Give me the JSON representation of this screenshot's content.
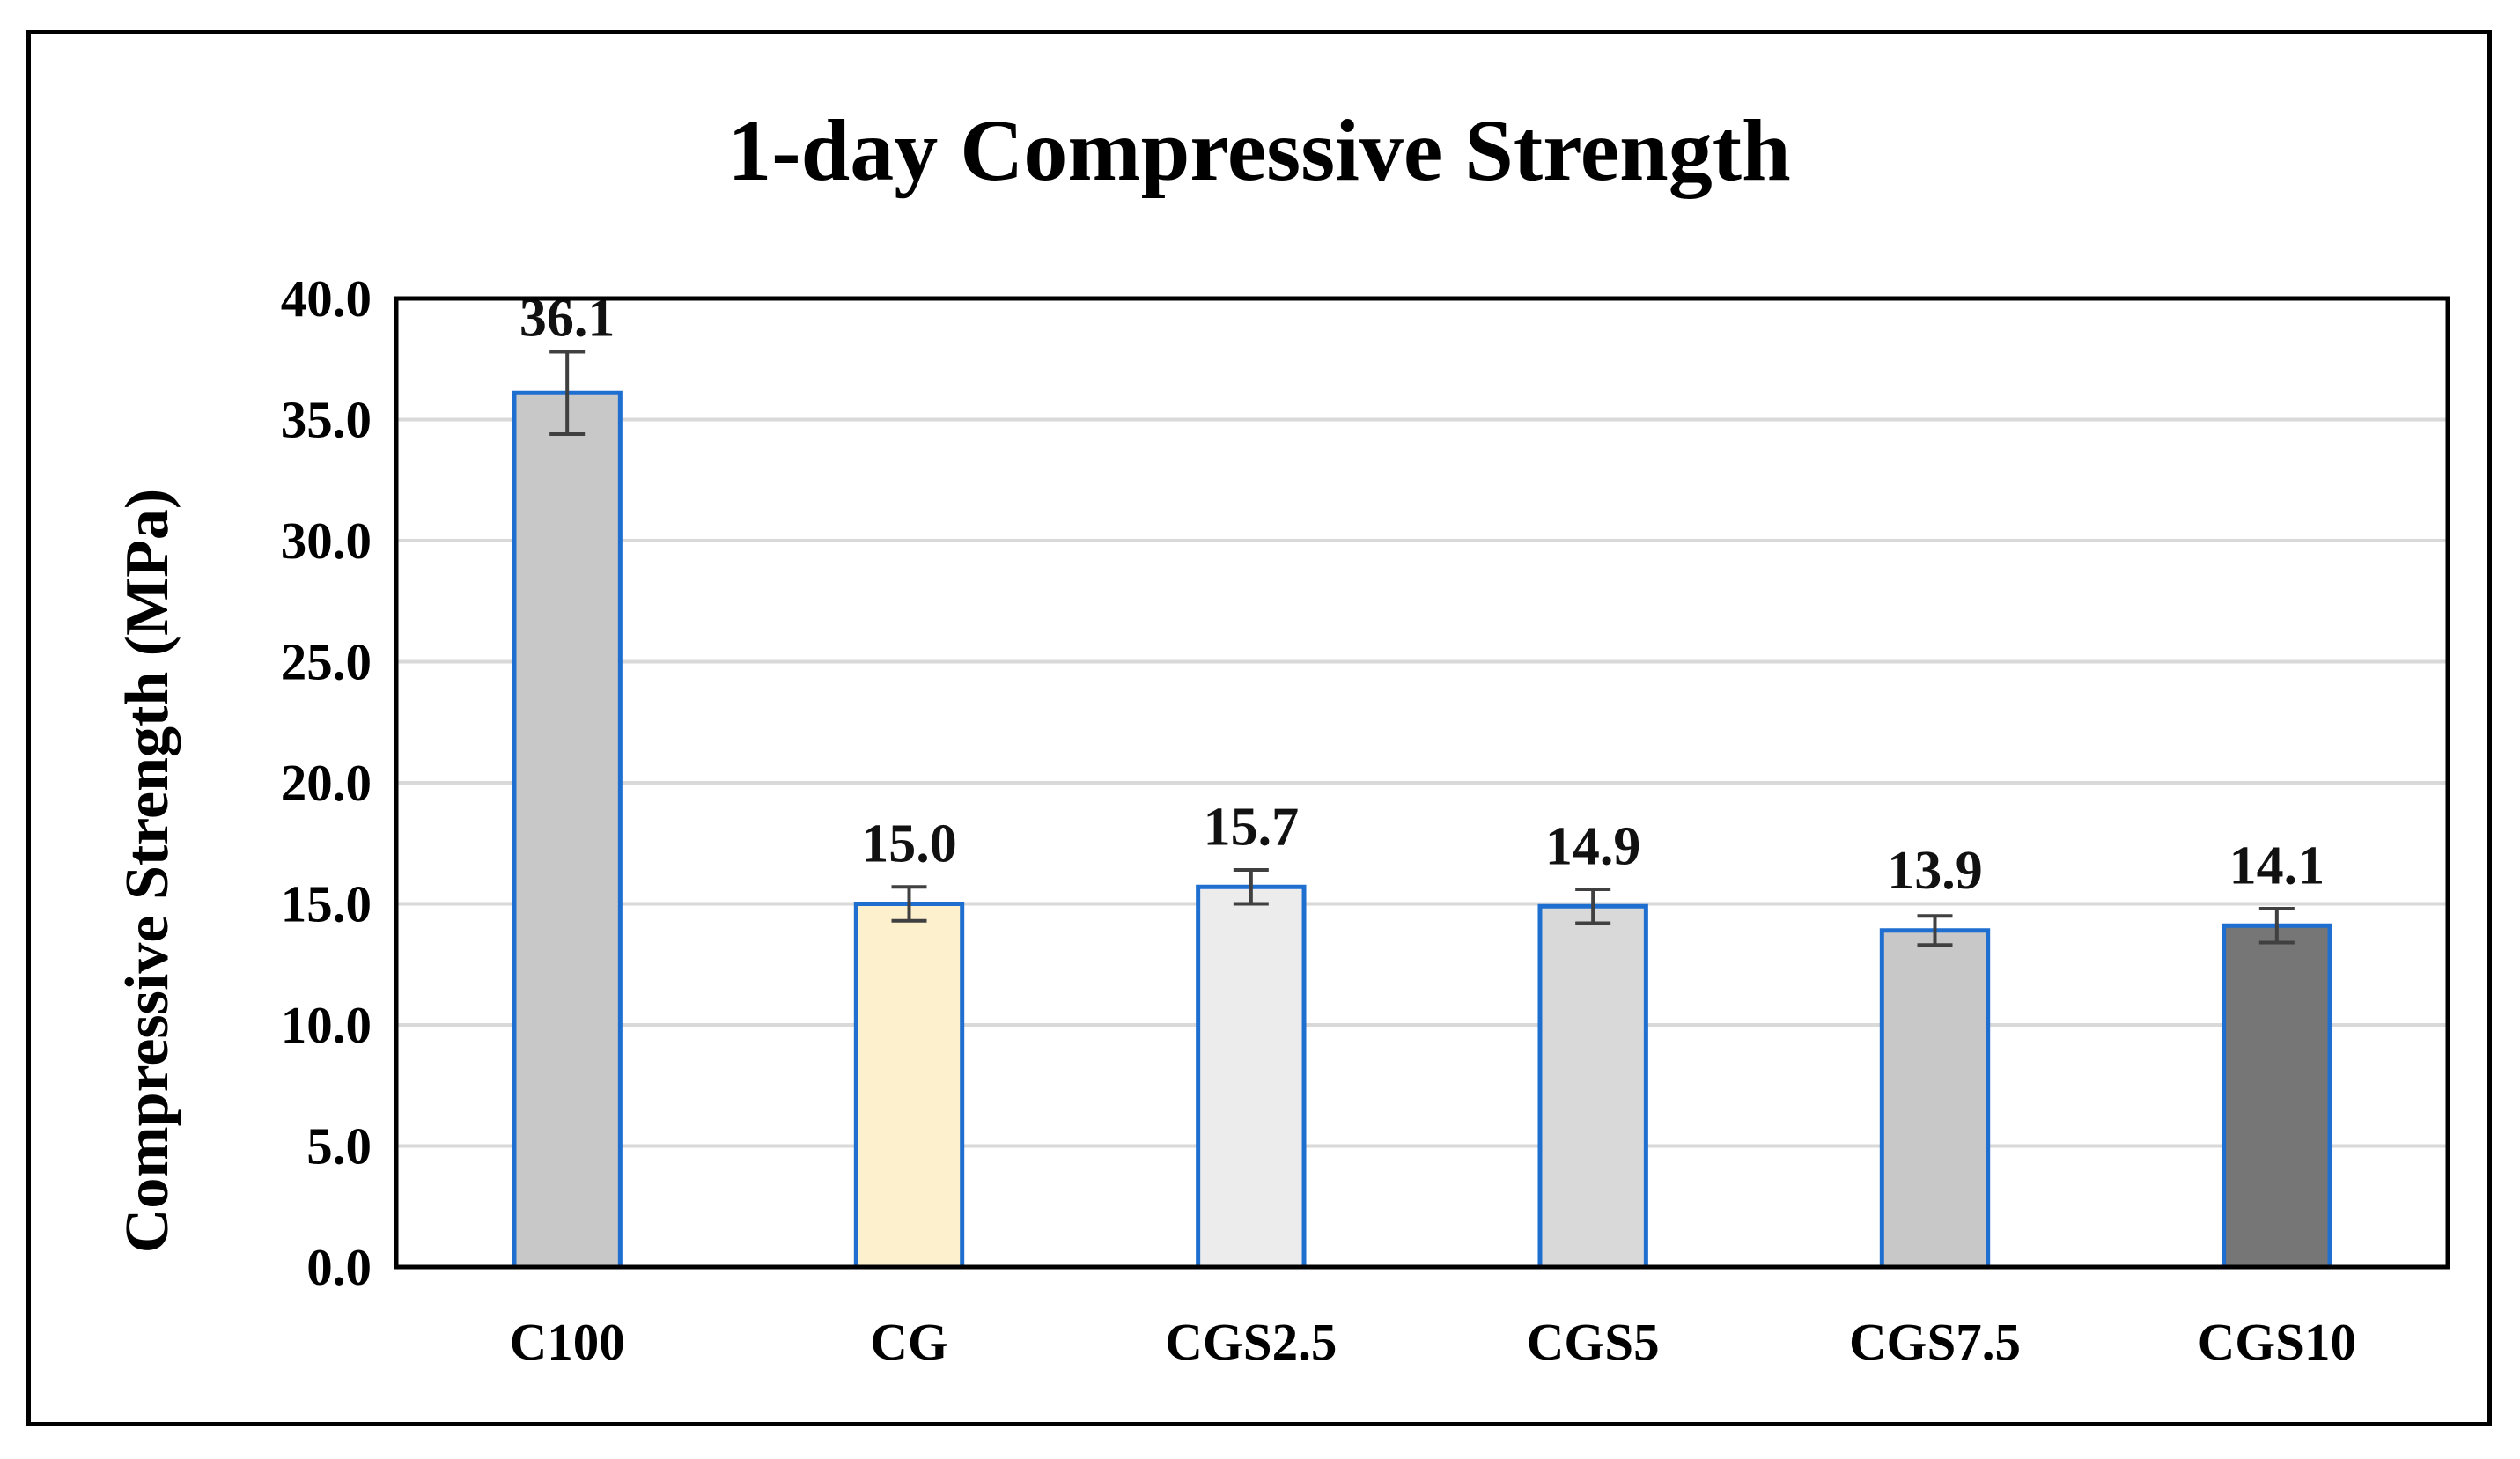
{
  "chart_data": {
    "type": "bar",
    "title": "1-day Compressive Strength",
    "xlabel": "",
    "ylabel": "Compressive Strength (MPa)",
    "ylim": [
      0,
      40
    ],
    "ytick_step": 5,
    "ytick_labels": [
      "0.0",
      "5.0",
      "10.0",
      "15.0",
      "20.0",
      "25.0",
      "30.0",
      "35.0",
      "40.0"
    ],
    "grid": true,
    "legend": "none",
    "categories": [
      "C100",
      "CG",
      "CGS2.5",
      "CGS5",
      "CGS7.5",
      "CGS10"
    ],
    "values": [
      36.1,
      15.0,
      15.7,
      14.9,
      13.9,
      14.1
    ],
    "value_labels": [
      "36.1",
      "15.0",
      "15.7",
      "14.9",
      "13.9",
      "14.1"
    ],
    "error": [
      1.7,
      0.7,
      0.7,
      0.7,
      0.6,
      0.7
    ],
    "bar_colors": [
      "#c8c8c8",
      "#fdf0cc",
      "#ececec",
      "#d9d9d9",
      "#c8c8c8",
      "#767676"
    ],
    "bar_edge_color": "#1f6fd1",
    "grid_color": "#d9d9d9",
    "errorbar_color": "#404040"
  }
}
